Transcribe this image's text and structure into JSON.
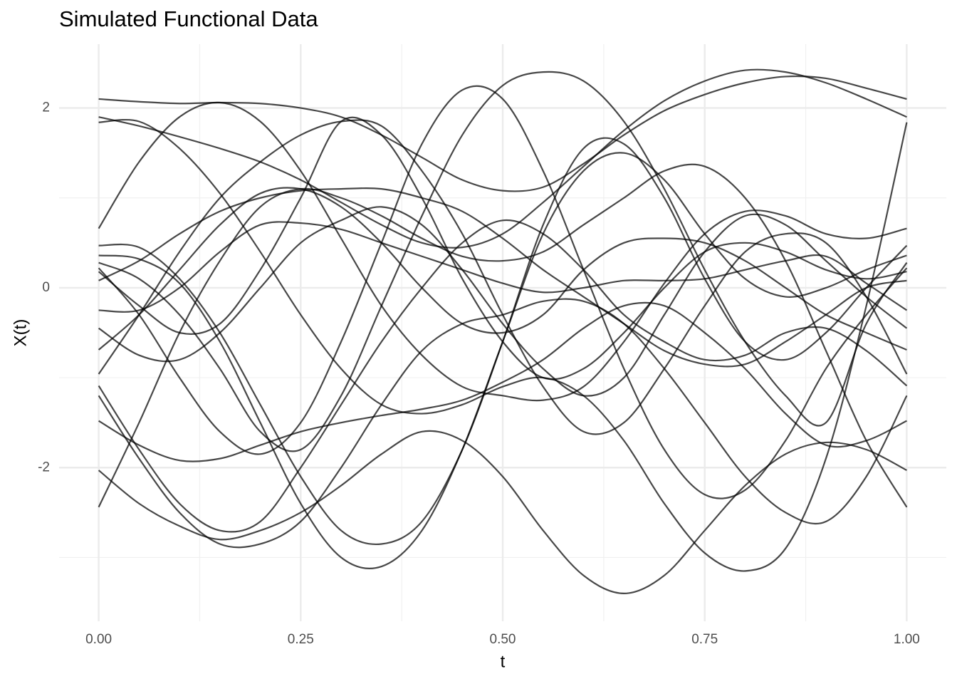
{
  "chart_data": {
    "type": "line",
    "title": "Simulated Functional Data",
    "x_label": "t",
    "y_label": "X(t)",
    "color": "#000000",
    "opacity": 0.72,
    "xlim": [
      -0.049,
      1.049
    ],
    "ylim": [
      -3.71,
      2.71
    ],
    "xticks": [
      {
        "value": 0,
        "label": "0.00"
      },
      {
        "value": 0.25,
        "label": "0.25"
      },
      {
        "value": 0.5,
        "label": "0.50"
      },
      {
        "value": 0.75,
        "label": "0.75"
      },
      {
        "value": 1,
        "label": "1.00"
      }
    ],
    "yticks": [
      -2,
      0,
      2
    ],
    "x_minor_grid": [
      0.125,
      0.375,
      0.625,
      0.875
    ],
    "y_minor_grid": [
      -3,
      -1,
      1
    ],
    "grid": true,
    "x": [
      0,
      0.05,
      0.1,
      0.15,
      0.2,
      0.25,
      0.3,
      0.35,
      0.4,
      0.45,
      0.5,
      0.55,
      0.6,
      0.65,
      0.7,
      0.75,
      0.8,
      0.85,
      0.9,
      0.95,
      1
    ],
    "series": [
      {
        "values": [
          2.1,
          2.07,
          2.05,
          2.06,
          2.05,
          2.0,
          1.9,
          1.7,
          1.45,
          1.2,
          1.08,
          1.12,
          1.38,
          1.7,
          1.97,
          2.15,
          2.28,
          2.35,
          2.33,
          2.22,
          2.1
        ]
      },
      {
        "values": [
          1.9,
          1.8,
          1.68,
          1.55,
          1.4,
          1.2,
          0.95,
          0.7,
          0.5,
          0.45,
          0.6,
          0.95,
          1.35,
          1.75,
          2.08,
          2.3,
          2.42,
          2.4,
          2.28,
          2.1,
          1.9
        ]
      },
      {
        "values": [
          1.84,
          1.85,
          1.55,
          1.05,
          0.4,
          -0.3,
          -0.9,
          -1.3,
          -1.4,
          -1.3,
          -1.1,
          -1.0,
          -1.2,
          -1.7,
          -2.4,
          -2.95,
          -3.15,
          -2.9,
          -1.9,
          -0.2,
          1.84
        ]
      },
      {
        "values": [
          0.66,
          1.4,
          1.9,
          2.06,
          1.85,
          1.3,
          0.55,
          -0.2,
          -0.75,
          -1.1,
          -1.2,
          -1.25,
          -1.1,
          -0.6,
          0.05,
          0.6,
          0.85,
          0.8,
          0.6,
          0.55,
          0.66
        ]
      },
      {
        "values": [
          0.47,
          0.45,
          0.1,
          -0.5,
          -1.3,
          -2.1,
          -2.7,
          -2.85,
          -2.6,
          -1.8,
          -0.6,
          0.7,
          1.55,
          1.6,
          1.0,
          0.1,
          -0.6,
          -0.8,
          -0.5,
          0.0,
          0.47
        ]
      },
      {
        "values": [
          0.36,
          0.32,
          0.05,
          -0.6,
          -1.5,
          -2.4,
          -3.0,
          -3.1,
          -2.7,
          -1.8,
          -0.6,
          0.6,
          1.3,
          1.5,
          1.2,
          0.6,
          0.1,
          -0.1,
          0.0,
          0.2,
          0.36
        ]
      },
      {
        "values": [
          0.28,
          0.1,
          -0.3,
          -0.9,
          -1.6,
          -1.8,
          -1.2,
          -0.2,
          0.8,
          1.7,
          2.25,
          2.4,
          2.3,
          1.85,
          1.1,
          0.2,
          -0.6,
          -1.2,
          -1.5,
          -0.4,
          0.28
        ]
      },
      {
        "values": [
          0.22,
          -0.3,
          -1.0,
          -1.6,
          -1.85,
          -1.5,
          -0.6,
          0.5,
          1.6,
          2.2,
          2.1,
          1.3,
          0.2,
          -0.9,
          -1.8,
          -2.3,
          -2.25,
          -1.7,
          -0.9,
          -0.3,
          0.22
        ]
      },
      {
        "values": [
          0.18,
          -0.2,
          -0.5,
          -0.4,
          0.2,
          1.0,
          1.85,
          1.7,
          1.0,
          0.1,
          -0.6,
          -1.0,
          -0.9,
          -0.5,
          0.0,
          0.4,
          0.5,
          0.4,
          0.2,
          0.1,
          0.18
        ]
      },
      {
        "values": [
          0.08,
          0.3,
          0.6,
          0.85,
          1.0,
          1.08,
          1.1,
          1.1,
          1.0,
          0.85,
          0.55,
          0.2,
          -0.1,
          -0.4,
          -0.7,
          -0.85,
          -0.85,
          -0.6,
          -0.3,
          0.0,
          0.08
        ]
      },
      {
        "values": [
          -0.25,
          -0.25,
          0.0,
          0.4,
          0.7,
          0.72,
          0.65,
          0.5,
          0.35,
          0.2,
          0.05,
          -0.05,
          0.0,
          0.08,
          0.08,
          0.1,
          0.2,
          0.3,
          0.35,
          0.05,
          -0.25
        ]
      },
      {
        "values": [
          -0.45,
          -0.75,
          -0.8,
          -0.5,
          0.0,
          0.5,
          0.75,
          0.9,
          0.7,
          0.2,
          -0.4,
          -0.9,
          -1.2,
          -1.0,
          -0.3,
          0.4,
          0.8,
          0.7,
          0.3,
          -0.1,
          -0.45
        ]
      },
      {
        "values": [
          -0.69,
          -0.3,
          0.2,
          0.7,
          1.05,
          1.1,
          0.9,
          0.5,
          0.0,
          -0.4,
          -0.5,
          -0.3,
          0.2,
          0.5,
          0.55,
          0.5,
          0.3,
          0.0,
          -0.3,
          -0.5,
          -0.69
        ]
      },
      {
        "values": [
          -0.96,
          -0.3,
          0.4,
          1.0,
          1.4,
          1.7,
          1.85,
          1.8,
          1.3,
          0.6,
          -0.3,
          -1.1,
          -1.6,
          -1.5,
          -0.9,
          -0.2,
          0.4,
          0.6,
          0.5,
          -0.1,
          -0.96
        ]
      },
      {
        "values": [
          -1.09,
          -1.8,
          -2.4,
          -2.7,
          -2.6,
          -2.0,
          -1.3,
          -0.6,
          0.0,
          0.5,
          0.75,
          0.6,
          0.2,
          -0.3,
          -0.6,
          -0.8,
          -0.75,
          -0.5,
          -0.45,
          -0.7,
          -1.09
        ]
      },
      {
        "values": [
          -1.2,
          -1.9,
          -2.5,
          -2.85,
          -2.85,
          -2.6,
          -2.0,
          -1.3,
          -0.7,
          -0.4,
          -0.3,
          -0.15,
          -0.15,
          -0.4,
          -0.9,
          -1.5,
          -2.1,
          -2.5,
          -2.6,
          -2.1,
          -1.2
        ]
      },
      {
        "values": [
          -1.48,
          -1.75,
          -1.92,
          -1.9,
          -1.75,
          -1.6,
          -1.5,
          -1.42,
          -1.35,
          -1.25,
          -1.05,
          -0.8,
          -0.45,
          -0.2,
          -0.2,
          -0.5,
          -0.9,
          -1.4,
          -1.75,
          -1.7,
          -1.48
        ]
      },
      {
        "values": [
          -2.03,
          -2.4,
          -2.65,
          -2.8,
          -2.7,
          -2.5,
          -2.2,
          -1.85,
          -1.6,
          -1.7,
          -2.1,
          -2.7,
          -3.2,
          -3.4,
          -3.2,
          -2.7,
          -2.2,
          -1.85,
          -1.72,
          -1.8,
          -2.03
        ]
      },
      {
        "values": [
          -2.44,
          -1.5,
          -0.5,
          0.3,
          0.9,
          1.1,
          1.0,
          0.8,
          0.55,
          0.35,
          0.3,
          0.4,
          0.7,
          1.0,
          1.3,
          1.35,
          1.0,
          0.3,
          -0.7,
          -1.7,
          -2.44
        ]
      }
    ]
  }
}
